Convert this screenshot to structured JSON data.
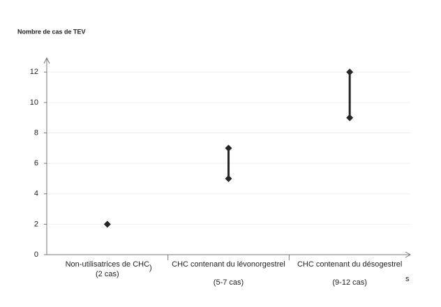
{
  "chart_data": {
    "type": "range",
    "y_label": "Nombre de cas de TEV",
    "categories": [
      "Non-utilisatrices de CHC",
      "CHC contenant du lévonorgestrel",
      "CHC contenant du désogestrel"
    ],
    "category_notes": [
      "(2 cas)",
      "(5-7 cas)",
      "(9-12 cas)"
    ],
    "lows": [
      2,
      5,
      9
    ],
    "highs": [
      2,
      7,
      12
    ],
    "color": "#262626",
    "ylim": [
      0,
      12.7
    ],
    "yticks": [
      0,
      2,
      4,
      6,
      8,
      10,
      12
    ],
    "grid": true,
    "annotations": [
      ")",
      "s"
    ]
  }
}
